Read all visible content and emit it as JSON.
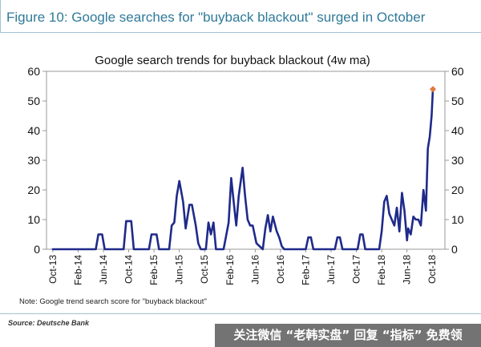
{
  "figure_title": "Figure 10: Google searches for \"buyback blackout\" surged in October",
  "note": "Note: Google trend search score for \"buyback blackout\"",
  "source": "Source: Deutsche Bank",
  "watermark": "关注微信 “老韩实盘” 回复 “指标” 免费领",
  "colors": {
    "line": "#1f2a8a",
    "marker": "#e07a3c",
    "title": "#2f7a99"
  },
  "chart_data": {
    "type": "line",
    "title": "Google search trends for buyback blackout (4w ma)",
    "ylim": [
      0,
      60
    ],
    "yticks": [
      0,
      10,
      20,
      30,
      40,
      50,
      60
    ],
    "dual_y_axis": true,
    "grid": false,
    "x_tick_labels": [
      "Oct-13",
      "Feb-14",
      "Jun-14",
      "Oct-14",
      "Feb-15",
      "Jun-15",
      "Oct-15",
      "Feb-16",
      "Jun-16",
      "Oct-16",
      "Feb-17",
      "Jun-17",
      "Oct-17",
      "Feb-18",
      "Jun-18",
      "Oct-18"
    ],
    "x_tick_months": [
      0,
      4,
      8,
      12,
      16,
      20,
      24,
      28,
      32,
      36,
      40,
      44,
      48,
      52,
      56,
      60
    ],
    "x": [
      0,
      4,
      6.8,
      7.2,
      7.8,
      8.2,
      11.2,
      11.6,
      12.4,
      12.8,
      15.2,
      15.6,
      16.4,
      16.8,
      18.4,
      18.8,
      19.2,
      19.6,
      20.0,
      20.6,
      21.0,
      21.6,
      22.0,
      22.6,
      23.0,
      23.4,
      24.2,
      24.6,
      25.0,
      25.4,
      25.8,
      26.4,
      27.0,
      27.8,
      28.2,
      28.6,
      29.0,
      29.4,
      30.0,
      30.4,
      30.8,
      31.2,
      31.6,
      32.2,
      33.2,
      33.6,
      34.0,
      34.4,
      34.8,
      35.4,
      35.8,
      36.2,
      36.6,
      37.2,
      37.6,
      38.4,
      40.0,
      40.4,
      40.8,
      41.2,
      44.6,
      45.0,
      45.4,
      45.8,
      48.2,
      48.6,
      49.0,
      49.4,
      50.0,
      51.6,
      52.0,
      52.4,
      52.8,
      53.2,
      53.6,
      54.0,
      54.4,
      54.8,
      55.2,
      55.6,
      56.0,
      56.2,
      56.6,
      57.0,
      57.4,
      57.8,
      58.2,
      58.6,
      59.0,
      59.3,
      59.6,
      59.9,
      60.1
    ],
    "y": [
      0,
      0,
      0,
      5,
      5,
      0,
      0,
      9.5,
      9.5,
      0,
      0,
      5,
      5,
      0,
      0,
      8,
      9,
      18,
      23,
      16,
      7,
      15,
      15,
      8,
      2,
      0,
      0,
      9,
      5,
      9,
      0,
      0,
      0,
      9,
      24,
      16,
      8,
      18,
      27.5,
      18,
      10,
      8,
      8,
      2,
      0,
      7,
      11.5,
      6,
      11,
      6,
      4,
      1,
      0,
      0,
      0,
      0,
      0,
      4,
      4,
      0,
      0,
      4,
      4,
      0,
      0,
      5,
      5,
      0,
      0,
      0,
      6,
      16,
      18,
      12,
      10,
      8,
      14,
      6,
      19,
      13,
      3,
      7,
      5,
      11,
      10,
      10,
      8,
      20,
      13,
      34,
      38,
      45,
      54
    ],
    "highlight_point": {
      "x": 60.1,
      "y": 54
    }
  }
}
